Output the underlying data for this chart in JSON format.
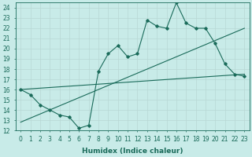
{
  "title": "",
  "xlabel": "Humidex (Indice chaleur)",
  "bg_color": "#c8ebe8",
  "line_color": "#1a6b5a",
  "grid_color": "#b8d8d4",
  "xlim": [
    -0.5,
    23.5
  ],
  "ylim": [
    12,
    24.5
  ],
  "xticks": [
    0,
    1,
    2,
    3,
    4,
    5,
    6,
    7,
    8,
    9,
    10,
    11,
    12,
    13,
    14,
    15,
    16,
    17,
    18,
    19,
    20,
    21,
    22,
    23
  ],
  "yticks": [
    12,
    13,
    14,
    15,
    16,
    17,
    18,
    19,
    20,
    21,
    22,
    23,
    24
  ],
  "main_x": [
    0,
    1,
    2,
    3,
    4,
    5,
    6,
    7,
    8,
    9,
    10,
    11,
    12,
    13,
    14,
    15,
    16,
    17,
    18,
    19,
    20,
    21,
    22,
    23
  ],
  "main_y": [
    16.0,
    15.5,
    14.5,
    14.0,
    13.5,
    13.3,
    12.2,
    12.5,
    17.8,
    19.5,
    20.3,
    19.2,
    19.5,
    22.8,
    22.2,
    22.0,
    24.5,
    22.5,
    22.0,
    22.0,
    20.5,
    18.5,
    17.5,
    17.3
  ],
  "trend1_x": [
    0,
    23
  ],
  "trend1_y": [
    16.0,
    17.5
  ],
  "trend2_x": [
    0,
    23
  ],
  "trend2_y": [
    12.8,
    22.0
  ],
  "tick_fontsize": 5.5,
  "xlabel_fontsize": 6.5
}
